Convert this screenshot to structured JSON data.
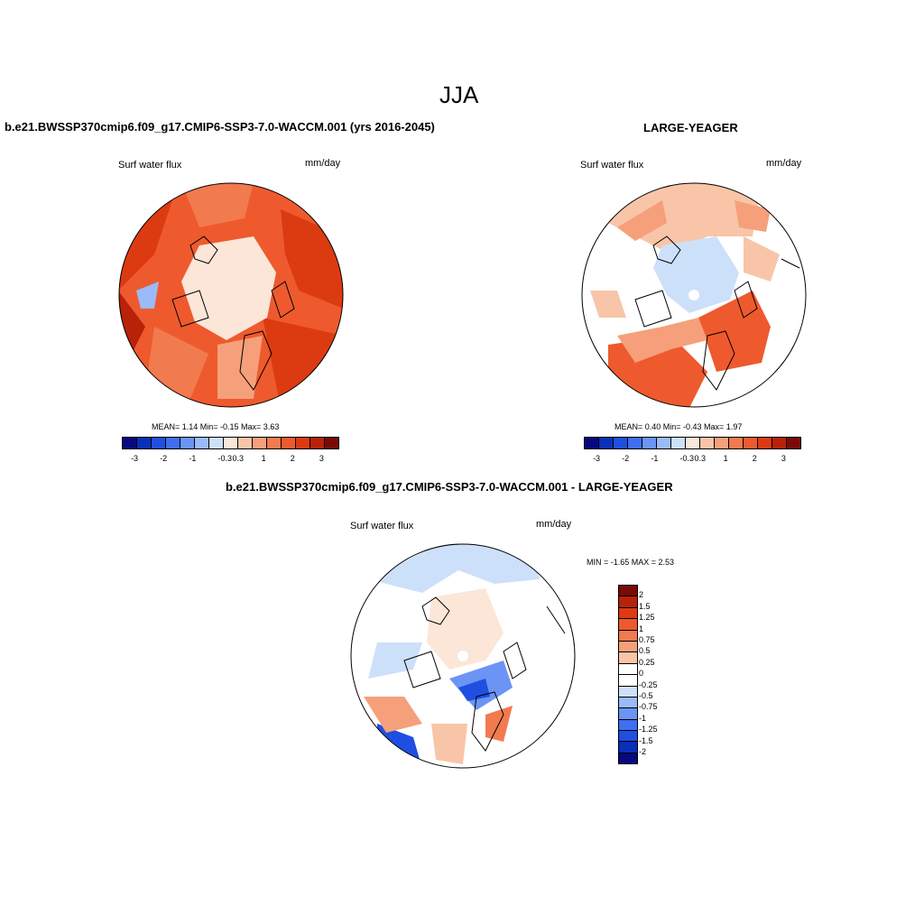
{
  "main_title": "JJA",
  "panel1": {
    "title": "b.e21.BWSSP370cmip6.f09_g17.CMIP6-SSP3-7.0-WACCM.001 (yrs 2016-2045)",
    "variable": "Surf water flux",
    "units": "mm/day",
    "stats": "MEAN=   1.14  Min=  -0.15  Max=   3.63"
  },
  "panel2": {
    "title": "LARGE-YEAGER",
    "variable": "Surf water flux",
    "units": "mm/day",
    "stats": "MEAN=   0.40  Min=  -0.43  Max=   1.97"
  },
  "panel3": {
    "title": "b.e21.BWSSP370cmip6.f09_g17.CMIP6-SSP3-7.0-WACCM.001 - LARGE-YEAGER",
    "variable": "Surf water flux",
    "units": "mm/day",
    "stats": "MIN =  -1.65 MAX =   2.53"
  },
  "colorbar_h": {
    "colors": [
      "#08087f",
      "#0a2fb8",
      "#1f4fe0",
      "#3f6ff0",
      "#6b94f5",
      "#9bbaf8",
      "#cde0fa",
      "#fbe6d8",
      "#f8c5a8",
      "#f5a07a",
      "#f27a4f",
      "#ee5a2e",
      "#dc3b12",
      "#b82208",
      "#7a0a05"
    ],
    "tick_labels": [
      "-3",
      "-2",
      "-1",
      "-0.3",
      "0.3",
      "1",
      "2",
      "3"
    ]
  },
  "colorbar_v": {
    "colors": [
      "#7a0a05",
      "#b82208",
      "#dc3b12",
      "#ee5a2e",
      "#f27a4f",
      "#f5a07a",
      "#f8c5a8",
      "#ffffff",
      "#ffffff",
      "#cde0fa",
      "#9bbaf8",
      "#6b94f5",
      "#3f6ff0",
      "#1f4fe0",
      "#0a2fb8",
      "#08087f"
    ],
    "tick_labels": [
      "2",
      "1.5",
      "1.25",
      "1",
      "0.75",
      "0.5",
      "0.25",
      "0",
      "-0.25",
      "-0.5",
      "-0.75",
      "-1",
      "-1.25",
      "-1.5",
      "-2"
    ]
  }
}
